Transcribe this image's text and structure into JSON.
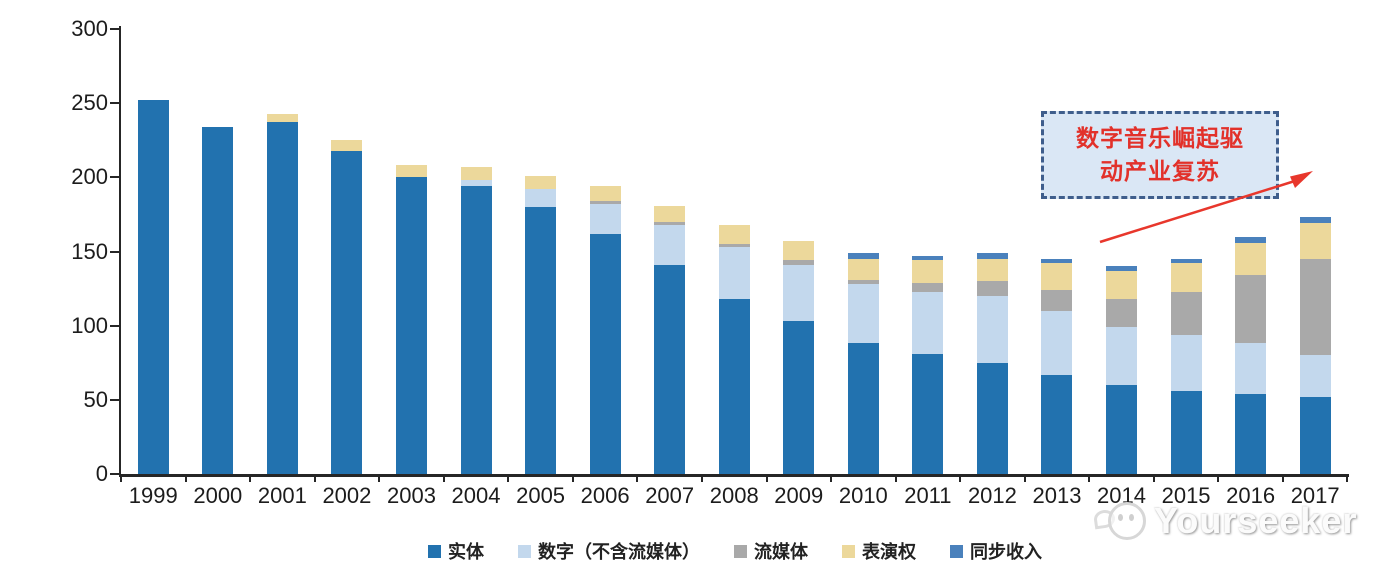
{
  "chart_data": {
    "type": "bar",
    "stacked": true,
    "title": "",
    "xlabel": "",
    "ylabel": "",
    "categories": [
      "1999",
      "2000",
      "2001",
      "2002",
      "2003",
      "2004",
      "2005",
      "2006",
      "2007",
      "2008",
      "2009",
      "2010",
      "2011",
      "2012",
      "2013",
      "2014",
      "2015",
      "2016",
      "2017"
    ],
    "series": [
      {
        "name": "实体",
        "color": "#2272af",
        "values": [
          252,
          234,
          237,
          218,
          200,
          194,
          180,
          162,
          141,
          118,
          103,
          88,
          81,
          75,
          67,
          60,
          56,
          54,
          52
        ]
      },
      {
        "name": "数字（不含流媒体）",
        "color": "#c3d8ed",
        "values": [
          0,
          0,
          0,
          0,
          0,
          4,
          12,
          20,
          27,
          35,
          38,
          40,
          42,
          45,
          43,
          39,
          38,
          34,
          28
        ]
      },
      {
        "name": "流媒体",
        "color": "#a9a9a9",
        "values": [
          0,
          0,
          0,
          0,
          0,
          0,
          0,
          2,
          2,
          2,
          3,
          3,
          6,
          10,
          14,
          19,
          29,
          46,
          65
        ]
      },
      {
        "name": "表演权",
        "color": "#ecd89b",
        "values": [
          0,
          0,
          6,
          7,
          8,
          9,
          9,
          10,
          11,
          13,
          13,
          14,
          15,
          15,
          18,
          19,
          19,
          22,
          24
        ]
      },
      {
        "name": "同步收入",
        "color": "#4a81bc",
        "values": [
          0,
          0,
          0,
          0,
          0,
          0,
          0,
          0,
          0,
          0,
          0,
          4,
          3,
          4,
          3,
          3,
          3,
          4,
          4
        ]
      }
    ],
    "ylim": [
      0,
      300
    ],
    "yticks": [
      0,
      50,
      100,
      150,
      200,
      250,
      300
    ],
    "grid": false,
    "legend_position": "bottom"
  },
  "annotation": {
    "line1": "数字音乐崛起驱",
    "line2": "动产业复苏",
    "text_color": "#e2312a",
    "box_fill": "#dae7f5",
    "box_border": "#3f5e8c",
    "arrow_color": "#e8372c"
  },
  "watermark": {
    "text": "Yourseeker"
  }
}
